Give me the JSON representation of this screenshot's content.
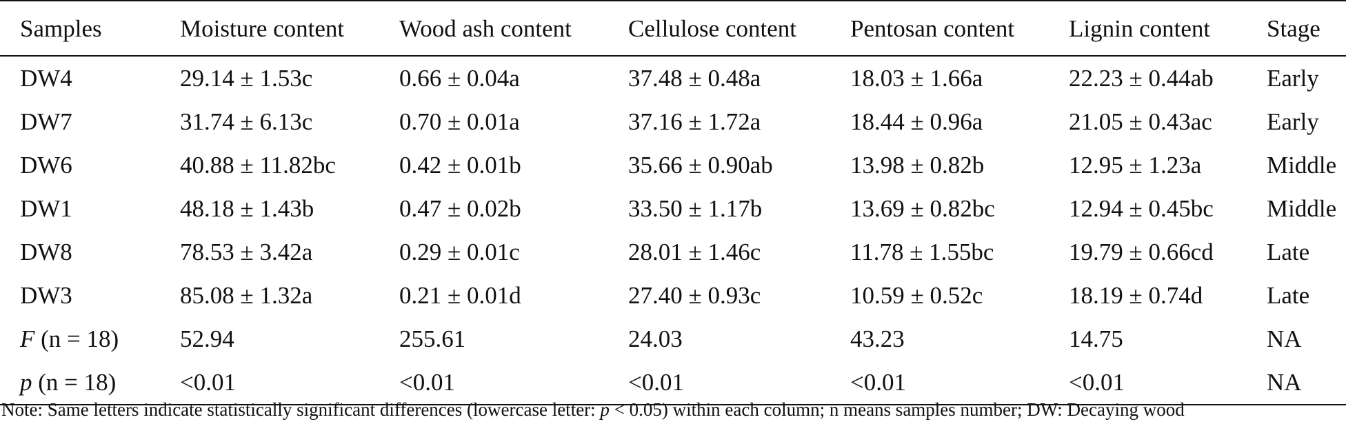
{
  "table": {
    "headers": [
      "Samples",
      "Moisture content",
      "Wood ash content",
      "Cellulose content",
      "Pentosan content",
      "Lignin content",
      "Stage"
    ],
    "rows": [
      [
        "DW4",
        "29.14 ± 1.53c",
        "0.66 ± 0.04a",
        "37.48 ± 0.48a",
        "18.03 ± 1.66a",
        "22.23 ± 0.44ab",
        "Early"
      ],
      [
        "DW7",
        "31.74 ± 6.13c",
        "0.70 ± 0.01a",
        "37.16 ± 1.72a",
        "18.44 ± 0.96a",
        "21.05 ± 0.43ac",
        "Early"
      ],
      [
        "DW6",
        "40.88 ± 11.82bc",
        "0.42 ± 0.01b",
        "35.66 ± 0.90ab",
        "13.98 ± 0.82b",
        "12.95 ± 1.23a",
        "Middle"
      ],
      [
        "DW1",
        "48.18 ± 1.43b",
        "0.47 ± 0.02b",
        "33.50 ± 1.17b",
        "13.69 ± 0.82bc",
        "12.94 ± 0.45bc",
        "Middle"
      ],
      [
        "DW8",
        "78.53 ± 3.42a",
        "0.29 ± 0.01c",
        "28.01 ± 1.46c",
        "11.78 ± 1.55bc",
        "19.79 ± 0.66cd",
        "Late"
      ],
      [
        "DW3",
        "85.08 ± 1.32a",
        "0.21 ± 0.01d",
        "27.40 ± 0.93c",
        "10.59 ± 0.52c",
        "18.19 ± 0.74d",
        "Late"
      ]
    ],
    "f_row": {
      "symbol": "F",
      "suffix": " (n = 18)",
      "values": [
        "52.94",
        "255.61",
        "24.03",
        "43.23",
        "14.75",
        "NA"
      ]
    },
    "p_row": {
      "symbol": "p",
      "suffix": " (n = 18)",
      "values": [
        "<0.01",
        "<0.01",
        "<0.01",
        "<0.01",
        "<0.01",
        "NA"
      ]
    }
  },
  "note": {
    "prefix": "Note: Same letters indicate statistically significant differences (lowercase letter: ",
    "symbol": "p",
    "suffix": " < 0.05) within each column; n means samples number; DW: Decaying wood"
  }
}
